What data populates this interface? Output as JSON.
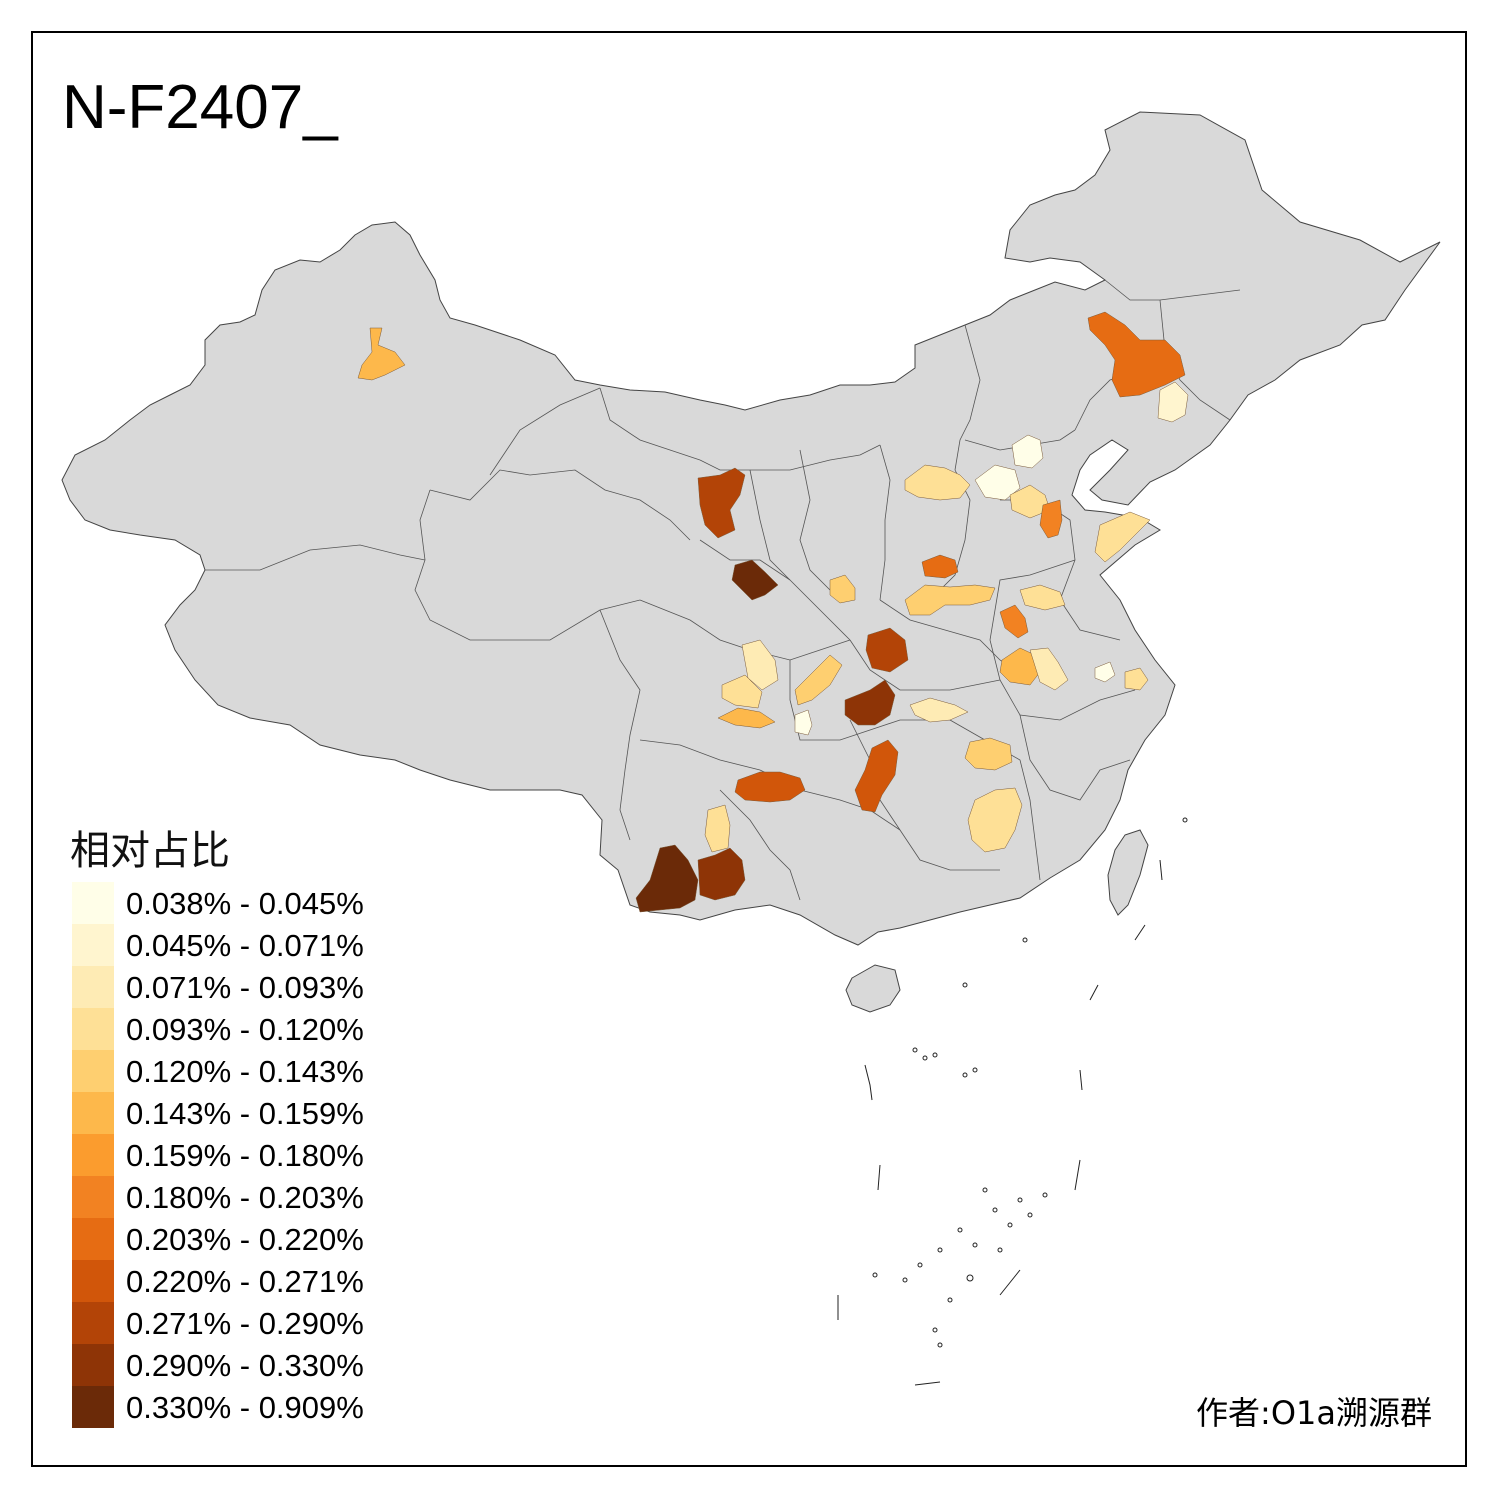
{
  "title": "N-F2407_",
  "legend": {
    "title": "相对占比",
    "items": [
      {
        "label": "0.038% - 0.045%",
        "color": "#fffee8"
      },
      {
        "label": "0.045% - 0.071%",
        "color": "#fff5cf"
      },
      {
        "label": "0.071% - 0.093%",
        "color": "#feebb4"
      },
      {
        "label": "0.093% - 0.120%",
        "color": "#fee096"
      },
      {
        "label": "0.120% - 0.143%",
        "color": "#fecf70"
      },
      {
        "label": "0.143% - 0.159%",
        "color": "#fdb84b"
      },
      {
        "label": "0.159% - 0.180%",
        "color": "#fb9c2e"
      },
      {
        "label": "0.180% - 0.203%",
        "color": "#f28222"
      },
      {
        "label": "0.203% - 0.220%",
        "color": "#e66c13"
      },
      {
        "label": "0.220% - 0.271%",
        "color": "#d1560a"
      },
      {
        "label": "0.271% - 0.290%",
        "color": "#b34407"
      },
      {
        "label": "0.290% - 0.330%",
        "color": "#8e3406"
      },
      {
        "label": "0.330% - 0.909%",
        "color": "#6b2a08"
      }
    ]
  },
  "author": "作者:O1a溯源群",
  "colors": {
    "land": "#d9d9d9",
    "border": "#555555",
    "frame": "#000000"
  }
}
